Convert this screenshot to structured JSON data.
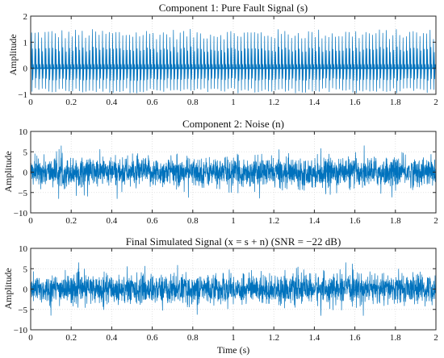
{
  "figure": {
    "signal_color": "#0072BD",
    "axis_color": "#262626",
    "grid_color": "#dcdcdc",
    "grid": true
  },
  "chart_data": [
    {
      "type": "line",
      "title": "Component 1: Pure Fault Signal (s)",
      "xlabel": "",
      "ylabel": "Amplitude",
      "xlim": [
        0,
        2
      ],
      "ylim": [
        -1,
        2
      ],
      "xticks": [
        0,
        0.2,
        0.4,
        0.6,
        0.8,
        1,
        1.2,
        1.4,
        1.6,
        1.8,
        2
      ],
      "xtick_labels": [
        "0",
        "0.2",
        "0.4",
        "0.6",
        "0.8",
        "1",
        "1.2",
        "1.4",
        "1.6",
        "1.8",
        "2"
      ],
      "yticks": [
        -1,
        0,
        1,
        2
      ],
      "ytick_labels": [
        "−1",
        "0",
        "1",
        "2"
      ],
      "series": [
        {
          "kind": "periodic impulses",
          "impulse_count": 120,
          "peak_range": [
            1.1,
            1.5
          ],
          "trough_range": [
            -0.95,
            -0.75
          ]
        }
      ]
    },
    {
      "type": "line",
      "title": "Component 2: Noise (n)",
      "xlabel": "",
      "ylabel": "Amplitude",
      "xlim": [
        0,
        2
      ],
      "ylim": [
        -10,
        10
      ],
      "xticks": [
        0,
        0.2,
        0.4,
        0.6,
        0.8,
        1,
        1.2,
        1.4,
        1.6,
        1.8,
        2
      ],
      "xtick_labels": [
        "0",
        "0.2",
        "0.4",
        "0.6",
        "0.8",
        "1",
        "1.2",
        "1.4",
        "1.6",
        "1.8",
        "2"
      ],
      "yticks": [
        -10,
        -5,
        0,
        5,
        10
      ],
      "ytick_labels": [
        "−10",
        "−5",
        "0",
        "5",
        "10"
      ],
      "series": [
        {
          "kind": "random noise",
          "amplitude_range": [
            -6.5,
            6.5
          ]
        }
      ]
    },
    {
      "type": "line",
      "title": "Final Simulated Signal (x = s + n) (SNR = −22 dB)",
      "xlabel": "Time (s)",
      "ylabel": "Amplitude",
      "xlim": [
        0,
        2
      ],
      "ylim": [
        -10,
        10
      ],
      "xticks": [
        0,
        0.2,
        0.4,
        0.6,
        0.8,
        1,
        1.2,
        1.4,
        1.6,
        1.8,
        2
      ],
      "xtick_labels": [
        "0",
        "0.2",
        "0.4",
        "0.6",
        "0.8",
        "1",
        "1.2",
        "1.4",
        "1.6",
        "1.8",
        "2"
      ],
      "yticks": [
        -10,
        -5,
        0,
        5,
        10
      ],
      "ytick_labels": [
        "−10",
        "−5",
        "0",
        "5",
        "10"
      ],
      "series": [
        {
          "kind": "noisy signal",
          "amplitude_range": [
            -6.5,
            6.5
          ]
        }
      ]
    }
  ]
}
